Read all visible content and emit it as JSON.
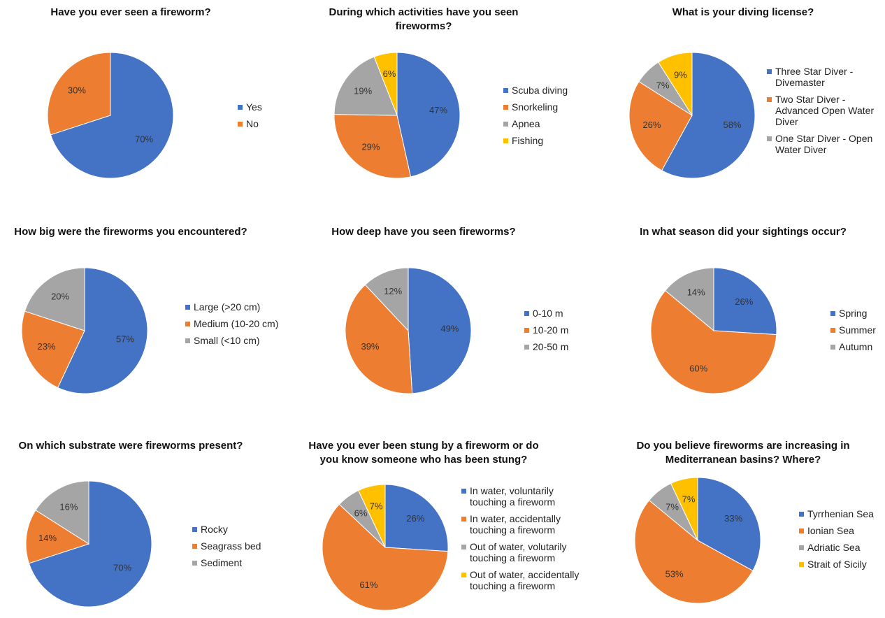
{
  "chart_data": [
    {
      "type": "pie",
      "title": "Have you ever seen a fireworm?",
      "categories": [
        "Yes",
        "No"
      ],
      "values": [
        70,
        30
      ],
      "value_labels": [
        "70%",
        "30%"
      ],
      "colors": [
        "#4472c4",
        "#ed7d31"
      ]
    },
    {
      "type": "pie",
      "title": "During which activities have you seen fireworms?",
      "categories": [
        "Scuba diving",
        "Snorkeling",
        "Apnea",
        "Fishing"
      ],
      "values": [
        47,
        29,
        19,
        6
      ],
      "value_labels": [
        "47%",
        "29%",
        "19%",
        "6%"
      ],
      "colors": [
        "#4472c4",
        "#ed7d31",
        "#a5a5a5",
        "#ffc000"
      ]
    },
    {
      "type": "pie",
      "title": "What is your diving license?",
      "categories": [
        "Three Star Diver - Divemaster",
        "Two Star Diver - Advanced Open Water Diver",
        "One Star Diver - Open Water Diver",
        null
      ],
      "values": [
        58,
        26,
        7,
        9
      ],
      "value_labels": [
        "58%",
        "26%",
        "7%",
        "9%"
      ],
      "colors": [
        "#4472c4",
        "#ed7d31",
        "#a5a5a5",
        "#ffc000"
      ]
    },
    {
      "type": "pie",
      "title": "How big were the fireworms you encountered?",
      "categories": [
        "Large (>20 cm)",
        "Medium (10-20 cm)",
        "Small (<10 cm)"
      ],
      "values": [
        57,
        23,
        20
      ],
      "value_labels": [
        "57%",
        "23%",
        "20%"
      ],
      "colors": [
        "#4472c4",
        "#ed7d31",
        "#a5a5a5"
      ]
    },
    {
      "type": "pie",
      "title": "How deep have you seen fireworms?",
      "categories": [
        "0-10 m",
        "10-20 m",
        "20-50 m"
      ],
      "values": [
        49,
        39,
        12
      ],
      "value_labels": [
        "49%",
        "39%",
        "12%"
      ],
      "colors": [
        "#4472c4",
        "#ed7d31",
        "#a5a5a5"
      ]
    },
    {
      "type": "pie",
      "title": "In what season did your sightings occur?",
      "categories": [
        "Spring",
        "Summer",
        "Autumn"
      ],
      "values": [
        26,
        60,
        14
      ],
      "value_labels": [
        "26%",
        "60%",
        "14%"
      ],
      "colors": [
        "#4472c4",
        "#ed7d31",
        "#a5a5a5"
      ]
    },
    {
      "type": "pie",
      "title": "On which substrate were fireworms present?",
      "categories": [
        "Rocky",
        "Seagrass bed",
        "Sediment"
      ],
      "values": [
        70,
        14,
        16
      ],
      "value_labels": [
        "70%",
        "14%",
        "16%"
      ],
      "colors": [
        "#4472c4",
        "#ed7d31",
        "#a5a5a5"
      ]
    },
    {
      "type": "pie",
      "title": "Have you ever been stung by a fireworm or do you know someone who has been stung?",
      "categories": [
        "In water, voluntarily touching a fireworm",
        "In water, accidentally touching a fireworm",
        "Out of water, volutarily touching a fireworm",
        "Out of water, accidentally touching a fireworm"
      ],
      "values": [
        26,
        61,
        6,
        7
      ],
      "value_labels": [
        "26%",
        "61%",
        "6%",
        "7%"
      ],
      "colors": [
        "#4472c4",
        "#ed7d31",
        "#a5a5a5",
        "#ffc000"
      ]
    },
    {
      "type": "pie",
      "title": "Do you believe fireworms are increasing in Mediterranean basins? Where?",
      "categories": [
        "Tyrrhenian Sea",
        "Ionian Sea",
        "Adriatic Sea",
        "Strait of Sicily"
      ],
      "values": [
        33,
        53,
        7,
        7
      ],
      "value_labels": [
        "33%",
        "53%",
        "7%",
        "7%"
      ],
      "colors": [
        "#4472c4",
        "#ed7d31",
        "#a5a5a5",
        "#ffc000"
      ]
    }
  ]
}
